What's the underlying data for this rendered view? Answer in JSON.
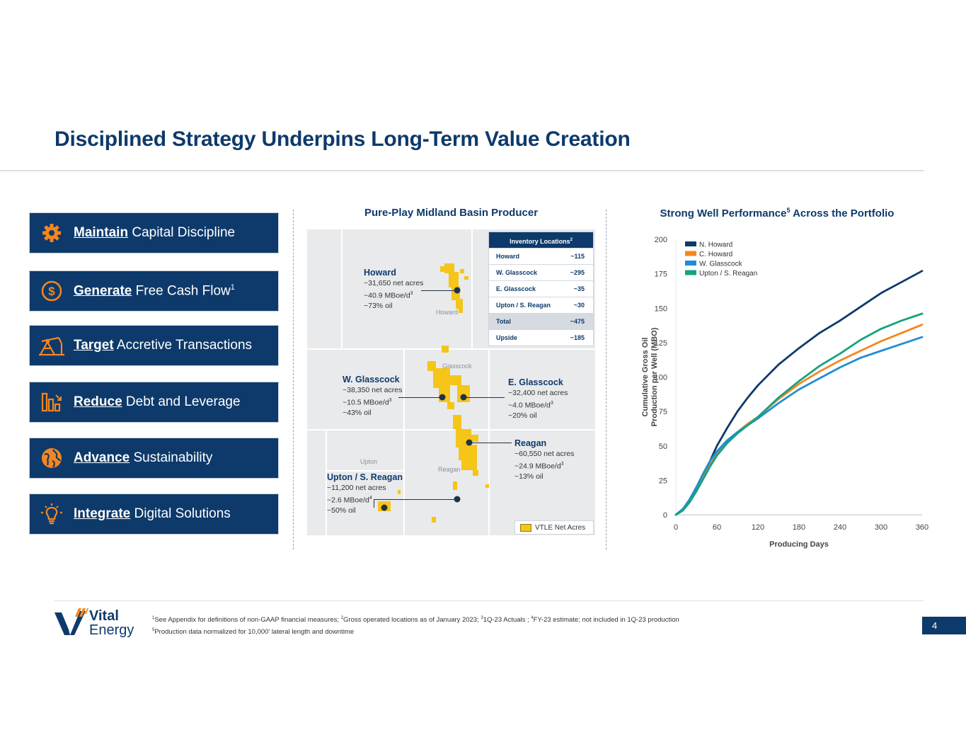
{
  "title": "Disciplined Strategy Underpins Long-Term Value Creation",
  "strategy": [
    {
      "keyword": "Maintain",
      "rest": "Capital Discipline",
      "sup": "",
      "icon": "gear-icon"
    },
    {
      "keyword": "Generate",
      "rest": "Free Cash Flow",
      "sup": "1",
      "icon": "dollar-icon"
    },
    {
      "keyword": "Target",
      "rest": "Accretive Transactions",
      "sup": "",
      "icon": "oil-pump-icon"
    },
    {
      "keyword": "Reduce",
      "rest": "Debt and Leverage",
      "sup": "",
      "icon": "declining-bar-chart-icon"
    },
    {
      "keyword": "Advance",
      "rest": "Sustainability",
      "sup": "",
      "icon": "globe-icon"
    },
    {
      "keyword": "Integrate",
      "rest": "Digital Solutions",
      "sup": "",
      "icon": "lightbulb-icon"
    }
  ],
  "map_section": {
    "title": "Pure-Play Midland Basin Producer",
    "counties": [
      "Howard",
      "Glasscock",
      "Upton",
      "Reagan"
    ],
    "annotations": {
      "howard": {
        "name": "Howard",
        "l1": "~31,650 net acres",
        "l2": "~40.9 MBoe/d",
        "l2sup": "3",
        "l3": "~73% oil"
      },
      "wglasscock": {
        "name": "W. Glasscock",
        "l1": "~38,350 net acres",
        "l2": "~10.5 MBoe/d",
        "l2sup": "3",
        "l3": "~43% oil"
      },
      "eglasscock": {
        "name": "E. Glasscock",
        "l1": "~32,400 net acres",
        "l2": "~4.0 MBoe/d",
        "l2sup": "3",
        "l3": "~20% oil"
      },
      "reagan": {
        "name": "Reagan",
        "l1": "~60,550 net acres",
        "l2": "~24.9 MBoe/d",
        "l2sup": "3",
        "l3": "~13% oil"
      },
      "upton": {
        "name": "Upton / S. Reagan",
        "l1": "~11,200 net acres",
        "l2": "~2.6 MBoe/d",
        "l2sup": "4",
        "l3": "~50% oil"
      }
    },
    "inventory": {
      "header": "Inventory Locations",
      "header_sup": "2",
      "rows": [
        {
          "label": "Howard",
          "value": "~115"
        },
        {
          "label": "W. Glasscock",
          "value": "~295"
        },
        {
          "label": "E. Glasscock",
          "value": "~35"
        },
        {
          "label": "Upton / S. Reagan",
          "value": "~30"
        },
        {
          "label": "Total",
          "value": "~475"
        },
        {
          "label": "Upside",
          "value": "~185"
        }
      ]
    },
    "legend": "VTLE Net Acres",
    "colors": {
      "acreage": "#f5c518",
      "marker": "#203245"
    }
  },
  "chart_section": {
    "title_a": "Strong Well Performance",
    "title_sup": "5",
    "title_b": " Across the Portfolio"
  },
  "chart_data": {
    "type": "line",
    "title": "Strong Well Performance Across the Portfolio",
    "xlabel": "Producing Days",
    "ylabel": [
      "Cumulative Gross Oil",
      "Production per Well (MBO)"
    ],
    "xlim": [
      0,
      360
    ],
    "ylim": [
      0,
      200
    ],
    "xticks": [
      0,
      60,
      120,
      180,
      240,
      300,
      360
    ],
    "yticks": [
      0,
      25,
      50,
      75,
      100,
      125,
      150,
      175,
      200
    ],
    "grid": false,
    "legend_position": "top-left",
    "series": [
      {
        "name": "N. Howard",
        "color": "#0e3a6b",
        "x": [
          0,
          10,
          20,
          30,
          40,
          50,
          60,
          75,
          90,
          105,
          120,
          150,
          180,
          210,
          240,
          270,
          300,
          330,
          360
        ],
        "y": [
          0,
          4,
          10,
          18,
          28,
          39,
          50,
          63,
          75,
          85,
          94,
          109,
          121,
          132,
          141,
          151,
          161,
          169,
          177
        ]
      },
      {
        "name": "C. Howard",
        "color": "#f5861f",
        "x": [
          0,
          10,
          20,
          30,
          40,
          50,
          60,
          75,
          90,
          105,
          120,
          150,
          180,
          210,
          240,
          270,
          300,
          330,
          360
        ],
        "y": [
          0,
          3,
          9,
          17,
          27,
          36,
          44,
          53,
          60,
          66,
          71,
          84,
          95,
          104,
          112,
          119,
          126,
          132,
          138
        ]
      },
      {
        "name": "W. Glasscock",
        "color": "#1f8dd6",
        "x": [
          0,
          10,
          20,
          30,
          40,
          50,
          60,
          75,
          90,
          105,
          120,
          150,
          180,
          210,
          240,
          270,
          300,
          330,
          360
        ],
        "y": [
          0,
          4,
          11,
          20,
          30,
          39,
          46,
          54,
          60,
          65,
          70,
          81,
          91,
          99,
          107,
          114,
          119,
          124,
          129
        ]
      },
      {
        "name": "Upton / S. Reagan",
        "color": "#14a37f",
        "x": [
          0,
          10,
          20,
          30,
          40,
          50,
          60,
          75,
          90,
          105,
          120,
          150,
          180,
          210,
          240,
          270,
          300,
          330,
          360
        ],
        "y": [
          0,
          3,
          9,
          17,
          26,
          35,
          43,
          52,
          59,
          65,
          71,
          85,
          97,
          108,
          117,
          127,
          135,
          141,
          146
        ]
      }
    ]
  },
  "footnotes": {
    "line1": "See Appendix for definitions of non-GAAP financial measures; ",
    "line1b": "Gross operated locations as of January 2023; ",
    "line1c": "1Q-23 Actuals ; ",
    "line1d": "FY-23 estimate; not included in 1Q-23 production",
    "line2": "Production data normalized for 10,000’ lateral length and downtime",
    "sups": [
      "1",
      "2",
      "3",
      "4",
      "5"
    ]
  },
  "logo": {
    "line1": "Vital",
    "line2": "Energy"
  },
  "page_number": "4"
}
